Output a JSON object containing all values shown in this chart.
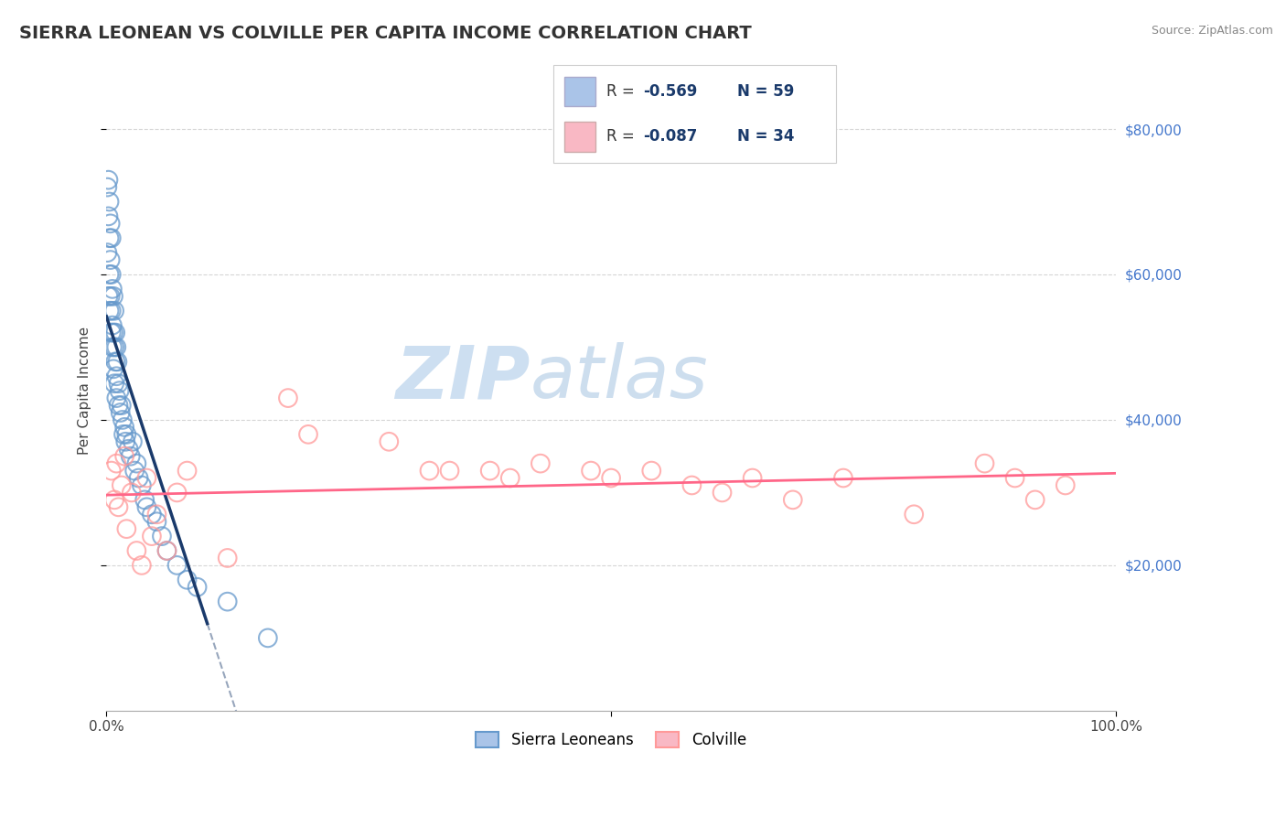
{
  "title": "SIERRA LEONEAN VS COLVILLE PER CAPITA INCOME CORRELATION CHART",
  "source_text": "Source: ZipAtlas.com",
  "ylabel": "Per Capita Income",
  "xlim": [
    0,
    1.0
  ],
  "ylim": [
    0,
    88000
  ],
  "ytick_vals": [
    20000,
    40000,
    60000,
    80000
  ],
  "ytick_labels": [
    "$20,000",
    "$40,000",
    "$60,000",
    "$80,000"
  ],
  "blue_color": "#6699CC",
  "blue_fill_color": "#aac4e8",
  "blue_line_color": "#1a3a6b",
  "pink_color": "#FF9999",
  "pink_fill_color": "#f9b8c4",
  "pink_line_color": "#FF6688",
  "legend_text_color": "#1a3a6b",
  "legend_label_blue": "Sierra Leoneans",
  "legend_label_pink": "Colville",
  "background_color": "#ffffff",
  "grid_color": "#cccccc",
  "watermark_text": "ZIPatlas",
  "watermark_color": "#ccddf0",
  "title_fontsize": 14,
  "axis_label_fontsize": 11,
  "tick_fontsize": 11,
  "right_ytick_color": "#4477CC",
  "blue_x": [
    0.001,
    0.001,
    0.002,
    0.002,
    0.002,
    0.003,
    0.003,
    0.003,
    0.003,
    0.004,
    0.004,
    0.004,
    0.005,
    0.005,
    0.005,
    0.005,
    0.006,
    0.006,
    0.006,
    0.007,
    0.007,
    0.007,
    0.008,
    0.008,
    0.008,
    0.009,
    0.009,
    0.01,
    0.01,
    0.01,
    0.011,
    0.012,
    0.012,
    0.013,
    0.014,
    0.015,
    0.016,
    0.017,
    0.018,
    0.019,
    0.02,
    0.022,
    0.024,
    0.026,
    0.028,
    0.03,
    0.032,
    0.035,
    0.038,
    0.04,
    0.045,
    0.05,
    0.055,
    0.06,
    0.07,
    0.08,
    0.09,
    0.12,
    0.16
  ],
  "blue_y": [
    72000,
    63000,
    68000,
    57000,
    73000,
    65000,
    60000,
    55000,
    70000,
    62000,
    57000,
    67000,
    60000,
    55000,
    52000,
    65000,
    58000,
    53000,
    50000,
    57000,
    52000,
    47000,
    55000,
    50000,
    45000,
    52000,
    48000,
    50000,
    46000,
    43000,
    48000,
    45000,
    42000,
    44000,
    41000,
    42000,
    40000,
    38000,
    39000,
    37000,
    38000,
    36000,
    35000,
    37000,
    33000,
    34000,
    32000,
    31000,
    29000,
    28000,
    27000,
    26000,
    24000,
    22000,
    20000,
    18000,
    17000,
    15000,
    10000
  ],
  "pink_x": [
    0.005,
    0.008,
    0.01,
    0.012,
    0.015,
    0.018,
    0.02,
    0.025,
    0.03,
    0.035,
    0.04,
    0.045,
    0.05,
    0.06,
    0.07,
    0.08,
    0.12,
    0.18,
    0.2,
    0.28,
    0.32,
    0.34,
    0.38,
    0.4,
    0.43,
    0.48,
    0.5,
    0.54,
    0.58,
    0.61,
    0.64,
    0.68,
    0.73,
    0.8,
    0.87,
    0.9,
    0.92,
    0.95
  ],
  "pink_y": [
    33000,
    29000,
    34000,
    28000,
    31000,
    35000,
    25000,
    30000,
    22000,
    20000,
    32000,
    24000,
    27000,
    22000,
    30000,
    33000,
    21000,
    43000,
    38000,
    37000,
    33000,
    33000,
    33000,
    32000,
    34000,
    33000,
    32000,
    33000,
    31000,
    30000,
    32000,
    29000,
    32000,
    27000,
    34000,
    32000,
    29000,
    31000
  ]
}
